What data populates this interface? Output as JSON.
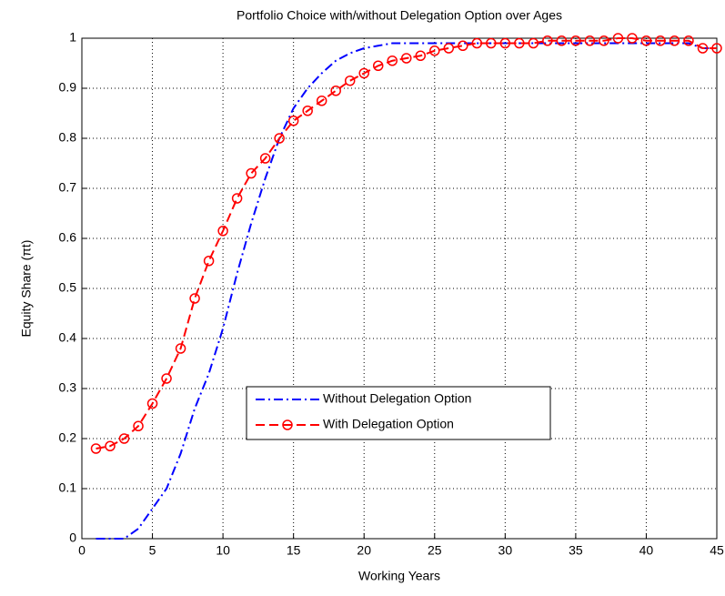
{
  "chart_data": {
    "type": "line",
    "title": "Portfolio Choice with/without Delegation Option over Ages",
    "xlabel": "Working Years",
    "ylabel": "Equity Share (πt)",
    "x": [
      1,
      2,
      3,
      4,
      5,
      6,
      7,
      8,
      9,
      10,
      11,
      12,
      13,
      14,
      15,
      16,
      17,
      18,
      19,
      20,
      21,
      22,
      23,
      24,
      25,
      26,
      27,
      28,
      29,
      30,
      31,
      32,
      33,
      34,
      35,
      36,
      37,
      38,
      39,
      40,
      41,
      42,
      43,
      44,
      45
    ],
    "series": [
      {
        "name": "Without Delegation Option",
        "color": "#0000ff",
        "style": "dashdot",
        "values": [
          0,
          0,
          0,
          0.02,
          0.06,
          0.1,
          0.17,
          0.26,
          0.33,
          0.42,
          0.53,
          0.63,
          0.72,
          0.8,
          0.86,
          0.9,
          0.93,
          0.955,
          0.97,
          0.98,
          0.985,
          0.99,
          0.99,
          0.99,
          0.99,
          0.99,
          0.99,
          0.99,
          0.99,
          0.99,
          0.99,
          0.99,
          0.99,
          0.99,
          0.99,
          0.99,
          0.99,
          0.99,
          0.99,
          0.99,
          0.99,
          0.99,
          0.99,
          0.98,
          0.98
        ]
      },
      {
        "name": "With Delegation Option",
        "color": "#ff0000",
        "style": "dashed-circle",
        "values": [
          0.18,
          0.185,
          0.2,
          0.225,
          0.27,
          0.32,
          0.38,
          0.48,
          0.555,
          0.615,
          0.68,
          0.73,
          0.76,
          0.8,
          0.835,
          0.855,
          0.875,
          0.895,
          0.915,
          0.93,
          0.945,
          0.955,
          0.96,
          0.965,
          0.975,
          0.98,
          0.985,
          0.99,
          0.99,
          0.99,
          0.99,
          0.99,
          0.995,
          0.995,
          0.995,
          0.995,
          0.995,
          1,
          1,
          0.995,
          0.995,
          0.995,
          0.995,
          0.98,
          0.98
        ]
      }
    ],
    "xlim": [
      0,
      45
    ],
    "xticks": [
      0,
      5,
      10,
      15,
      20,
      25,
      30,
      35,
      40,
      45
    ],
    "ylim": [
      0,
      1
    ],
    "yticks": [
      0,
      0.1,
      0.2,
      0.3,
      0.4,
      0.5,
      0.6,
      0.7,
      0.8,
      0.9,
      1
    ],
    "grid": true,
    "legend": "center"
  }
}
